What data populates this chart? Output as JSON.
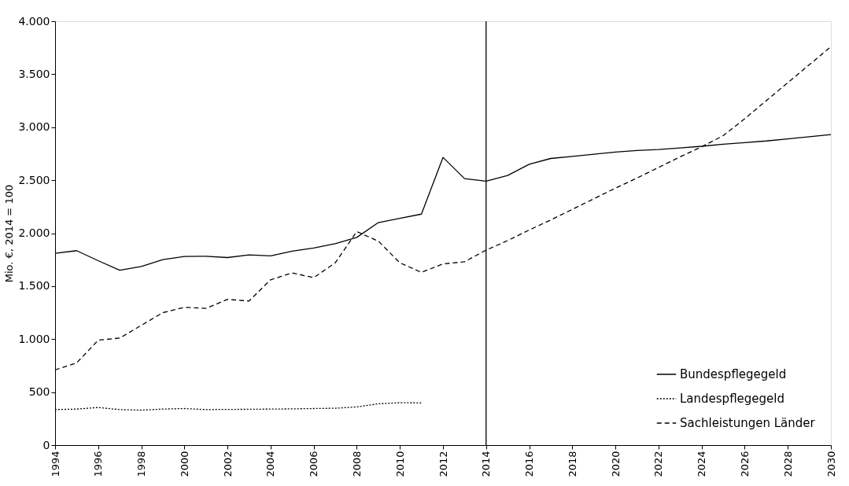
{
  "chart_data": {
    "type": "line",
    "ylabel": "Mio. €, 2014 = 100",
    "xlim": [
      1994,
      2030
    ],
    "xticks": [
      1994,
      1996,
      1998,
      2000,
      2002,
      2004,
      2006,
      2008,
      2010,
      2012,
      2014,
      2016,
      2018,
      2020,
      2022,
      2024,
      2026,
      2028,
      2030
    ],
    "ylim": [
      0,
      4000
    ],
    "yticks": [
      0,
      500,
      {
        "value": 1000,
        "label": "1.000"
      },
      {
        "value": 1500,
        "label": "1.500"
      },
      {
        "value": 2000,
        "label": "2.000"
      },
      {
        "value": 2500,
        "label": "2.500"
      },
      {
        "value": 3000,
        "label": "3.000"
      },
      {
        "value": 3500,
        "label": "3.500"
      },
      {
        "value": 4000,
        "label": "4.000"
      }
    ],
    "grid": false,
    "legend": "bottom right",
    "marker": "none",
    "ref_lines": [
      {
        "axis": "x",
        "value": 2014,
        "color": "#000000",
        "line_style": "solid"
      }
    ],
    "series": [
      {
        "name": "Bundespflegegeld",
        "color": "#000000",
        "line_style": "solid",
        "x": [
          1994,
          1995,
          1996,
          1997,
          1998,
          1999,
          2000,
          2001,
          2002,
          2003,
          2004,
          2005,
          2006,
          2007,
          2008,
          2009,
          2010,
          2011,
          2012,
          2013,
          2014,
          2015,
          2016,
          2017,
          2018,
          2019,
          2020,
          2021,
          2022,
          2023,
          2024,
          2025,
          2026,
          2027,
          2028,
          2029,
          2030
        ],
        "values": [
          1810,
          1835,
          1740,
          1650,
          1685,
          1750,
          1780,
          1782,
          1770,
          1795,
          1785,
          1830,
          1860,
          1900,
          1960,
          2100,
          2140,
          2180,
          2715,
          2515,
          2490,
          2545,
          2650,
          2705,
          2725,
          2745,
          2765,
          2780,
          2790,
          2805,
          2820,
          2840,
          2855,
          2870,
          2890,
          2910,
          2930
        ]
      },
      {
        "name": "Landespflegegeld",
        "color": "#000000",
        "line_style": "dotted",
        "x": [
          1994,
          1995,
          1996,
          1997,
          1998,
          1999,
          2000,
          2001,
          2002,
          2003,
          2004,
          2005,
          2006,
          2007,
          2008,
          2009,
          2010,
          2011
        ],
        "values": [
          335,
          340,
          355,
          335,
          330,
          340,
          345,
          335,
          337,
          338,
          340,
          342,
          345,
          348,
          360,
          390,
          400,
          398
        ]
      },
      {
        "name": "Sachleistungen Länder",
        "color": "#000000",
        "line_style": "dashed",
        "x": [
          1994,
          1995,
          1996,
          1997,
          1998,
          1999,
          2000,
          2001,
          2002,
          2003,
          2004,
          2005,
          2006,
          2007,
          2008,
          2009,
          2010,
          2011,
          2012,
          2013,
          2014,
          2015,
          2016,
          2017,
          2018,
          2019,
          2020,
          2021,
          2022,
          2023,
          2024,
          2025,
          2026,
          2027,
          2028,
          2029,
          2030
        ],
        "values": [
          710,
          775,
          990,
          1010,
          1130,
          1250,
          1300,
          1290,
          1375,
          1360,
          1560,
          1625,
          1580,
          1720,
          2015,
          1925,
          1720,
          1630,
          1710,
          1730,
          1840,
          1930,
          2030,
          2125,
          2225,
          2325,
          2425,
          2520,
          2620,
          2720,
          2815,
          2920,
          3080,
          3250,
          3420,
          3590,
          3760
        ]
      }
    ]
  }
}
